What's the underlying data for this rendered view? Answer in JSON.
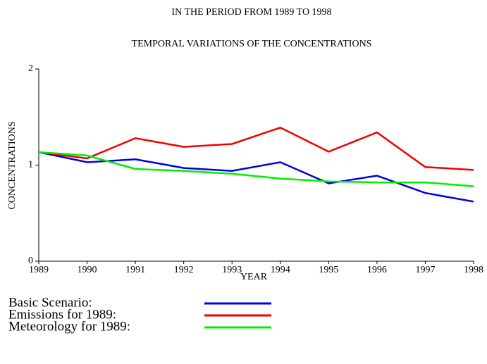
{
  "chart_data": {
    "type": "line",
    "title": "IN THE PERIOD FROM 1989 TO 1998",
    "subtitle": "TEMPORAL VARIATIONS OF THE CONCENTRATIONS",
    "x_label": "YEAR",
    "y_label": "CONCENTRATIONS",
    "x": [
      1989,
      1990,
      1991,
      1992,
      1993,
      1994,
      1995,
      1996,
      1997,
      1998
    ],
    "series": [
      {
        "name": "Basic Scenario:",
        "color": "#0000dd",
        "values": [
          1.135,
          1.03,
          1.06,
          0.97,
          0.94,
          1.03,
          0.81,
          0.89,
          0.71,
          0.62
        ]
      },
      {
        "name": "Emissions for 1989:",
        "color": "#ee0000",
        "values": [
          1.135,
          1.07,
          1.28,
          1.19,
          1.22,
          1.39,
          1.14,
          1.34,
          0.98,
          0.95
        ]
      },
      {
        "name": "Meteorology for 1989:",
        "color": "#00ee00",
        "values": [
          1.135,
          1.1,
          0.96,
          0.94,
          0.91,
          0.86,
          0.83,
          0.82,
          0.82,
          0.78
        ]
      }
    ],
    "xlim": [
      1989,
      1998
    ],
    "xticks": [
      1989,
      1990,
      1991,
      1992,
      1993,
      1994,
      1995,
      1996,
      1997,
      1998
    ],
    "ylim": [
      0,
      2
    ],
    "yticks": [
      0,
      1,
      2
    ],
    "grid": false
  }
}
